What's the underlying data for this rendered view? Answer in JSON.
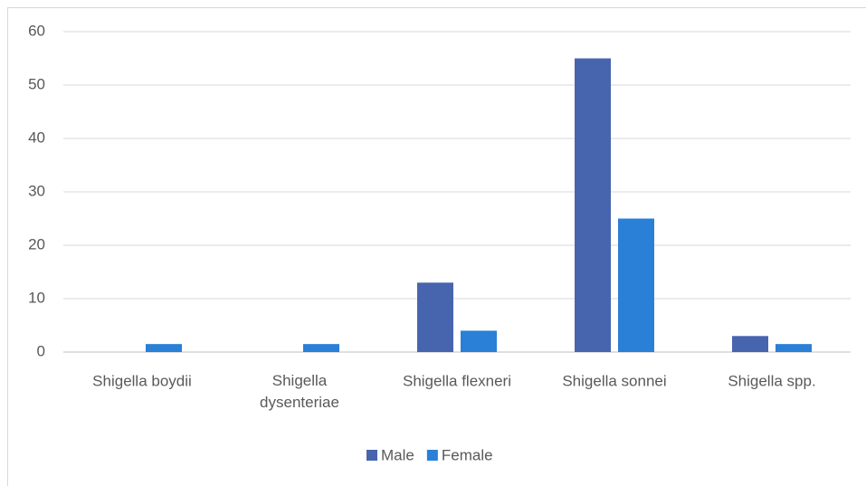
{
  "chart_data": {
    "type": "bar",
    "categories": [
      "Shigella boydii",
      "Shigella dysenteriae",
      "Shigella flexneri",
      "Shigella sonnei",
      "Shigella spp."
    ],
    "series": [
      {
        "name": "Male",
        "color": "#4764ae",
        "values": [
          0,
          0,
          13,
          55,
          3
        ]
      },
      {
        "name": "Female",
        "color": "#2a7fd6",
        "values": [
          1.5,
          1.5,
          4,
          25,
          1.5
        ]
      }
    ],
    "ylim": [
      0,
      60
    ],
    "yticks": [
      0,
      10,
      20,
      30,
      40,
      50,
      60
    ],
    "grid": true,
    "legend": "bottom"
  }
}
